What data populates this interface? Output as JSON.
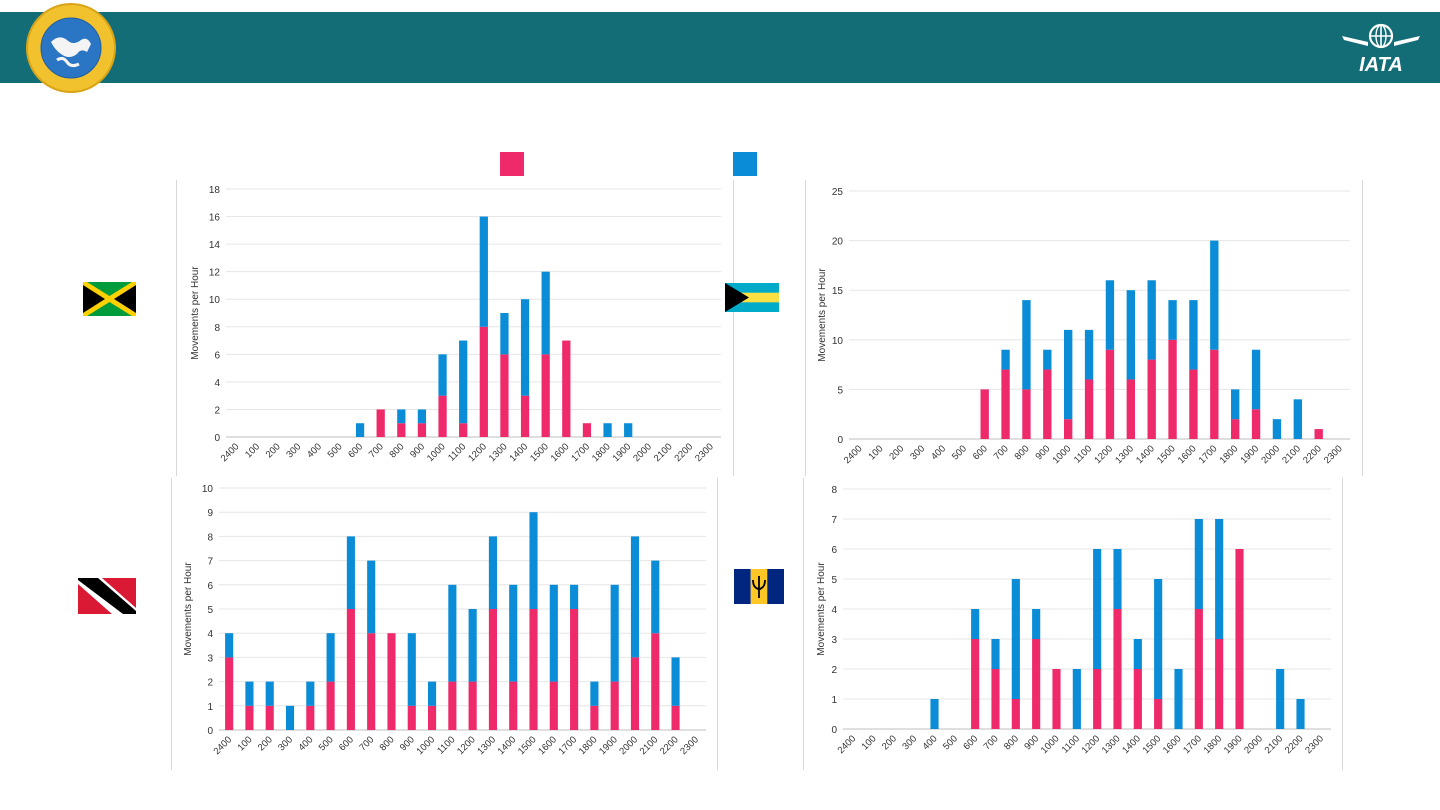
{
  "header": {
    "band_color": "#136d76",
    "cdb_logo_text": "CARIBBEAN DEVELOPMENT BANK",
    "iata_logo_text": "IATA"
  },
  "legend": [
    {
      "color": "#ee2a6b"
    },
    {
      "color": "#0a8dd6"
    }
  ],
  "colors": {
    "series_a": "#ee2a6b",
    "series_b": "#0a8dd6"
  },
  "chart_data": [
    {
      "type": "bar",
      "stacked": true,
      "flag": "Jamaica",
      "ylabel": "Movements per Hour",
      "ylim": [
        0,
        18
      ],
      "yticks": [
        0,
        2,
        4,
        6,
        8,
        10,
        12,
        14,
        16,
        18
      ],
      "grid": true,
      "categories": [
        "2400",
        "100",
        "200",
        "300",
        "400",
        "500",
        "600",
        "700",
        "800",
        "900",
        "1000",
        "1100",
        "1200",
        "1300",
        "1400",
        "1500",
        "1600",
        "1700",
        "1800",
        "1900",
        "2000",
        "2100",
        "2200",
        "2300"
      ],
      "series": [
        {
          "values": [
            0,
            0,
            0,
            0,
            0,
            0,
            0,
            2,
            1,
            1,
            3,
            1,
            8,
            6,
            3,
            6,
            7,
            1,
            0,
            0,
            0,
            0,
            0,
            0
          ]
        },
        {
          "values": [
            0,
            0,
            0,
            0,
            0,
            0,
            1,
            0,
            1,
            1,
            3,
            6,
            8,
            3,
            7,
            6,
            0,
            0,
            1,
            1,
            0,
            0,
            0,
            0
          ]
        }
      ]
    },
    {
      "type": "bar",
      "stacked": true,
      "flag": "Bahamas",
      "ylabel": "Movements per Hour",
      "ylim": [
        0,
        25
      ],
      "yticks": [
        0,
        5,
        10,
        15,
        20,
        25
      ],
      "grid": true,
      "categories": [
        "2400",
        "100",
        "200",
        "300",
        "400",
        "500",
        "600",
        "700",
        "800",
        "900",
        "1000",
        "1100",
        "1200",
        "1300",
        "1400",
        "1500",
        "1600",
        "1700",
        "1800",
        "1900",
        "2000",
        "2100",
        "2200",
        "2300"
      ],
      "series": [
        {
          "values": [
            0,
            0,
            0,
            0,
            0,
            0,
            5,
            7,
            5,
            7,
            2,
            6,
            9,
            6,
            8,
            10,
            7,
            9,
            2,
            3,
            0,
            0,
            1,
            0
          ]
        },
        {
          "values": [
            0,
            0,
            0,
            0,
            0,
            0,
            0,
            2,
            9,
            2,
            9,
            5,
            7,
            9,
            8,
            4,
            7,
            11,
            3,
            6,
            2,
            4,
            0,
            0
          ]
        }
      ]
    },
    {
      "type": "bar",
      "stacked": true,
      "flag": "Trinidad and Tobago",
      "ylabel": "Movements per Hour",
      "ylim": [
        0,
        10
      ],
      "yticks": [
        0,
        1,
        2,
        3,
        4,
        5,
        6,
        7,
        8,
        9,
        10
      ],
      "grid": true,
      "categories": [
        "2400",
        "100",
        "200",
        "300",
        "400",
        "500",
        "600",
        "700",
        "800",
        "900",
        "1000",
        "1100",
        "1200",
        "1300",
        "1400",
        "1500",
        "1600",
        "1700",
        "1800",
        "1900",
        "2000",
        "2100",
        "2200",
        "2300"
      ],
      "series": [
        {
          "values": [
            3,
            1,
            1,
            0,
            1,
            2,
            5,
            4,
            4,
            1,
            1,
            2,
            2,
            5,
            2,
            5,
            2,
            5,
            1,
            2,
            3,
            4,
            1,
            0
          ]
        },
        {
          "values": [
            1,
            1,
            1,
            1,
            1,
            2,
            3,
            3,
            0,
            3,
            1,
            4,
            3,
            3,
            4,
            4,
            4,
            1,
            1,
            4,
            5,
            3,
            2,
            0
          ]
        }
      ]
    },
    {
      "type": "bar",
      "stacked": true,
      "flag": "Barbados",
      "ylabel": "Movements per Hour",
      "ylim": [
        0,
        8
      ],
      "yticks": [
        0,
        1,
        2,
        3,
        4,
        5,
        6,
        7,
        8
      ],
      "grid": true,
      "categories": [
        "2400",
        "100",
        "200",
        "300",
        "400",
        "500",
        "600",
        "700",
        "800",
        "900",
        "1000",
        "1100",
        "1200",
        "1300",
        "1400",
        "1500",
        "1600",
        "1700",
        "1800",
        "1900",
        "2000",
        "2100",
        "2200",
        "2300"
      ],
      "series": [
        {
          "values": [
            0,
            0,
            0,
            0,
            0,
            0,
            3,
            2,
            1,
            3,
            2,
            0,
            2,
            4,
            2,
            1,
            0,
            4,
            3,
            6,
            0,
            0,
            0,
            0
          ]
        },
        {
          "values": [
            0,
            0,
            0,
            0,
            1,
            0,
            1,
            1,
            4,
            1,
            0,
            2,
            4,
            2,
            1,
            4,
            2,
            3,
            4,
            0,
            0,
            2,
            1,
            0
          ]
        }
      ]
    }
  ]
}
